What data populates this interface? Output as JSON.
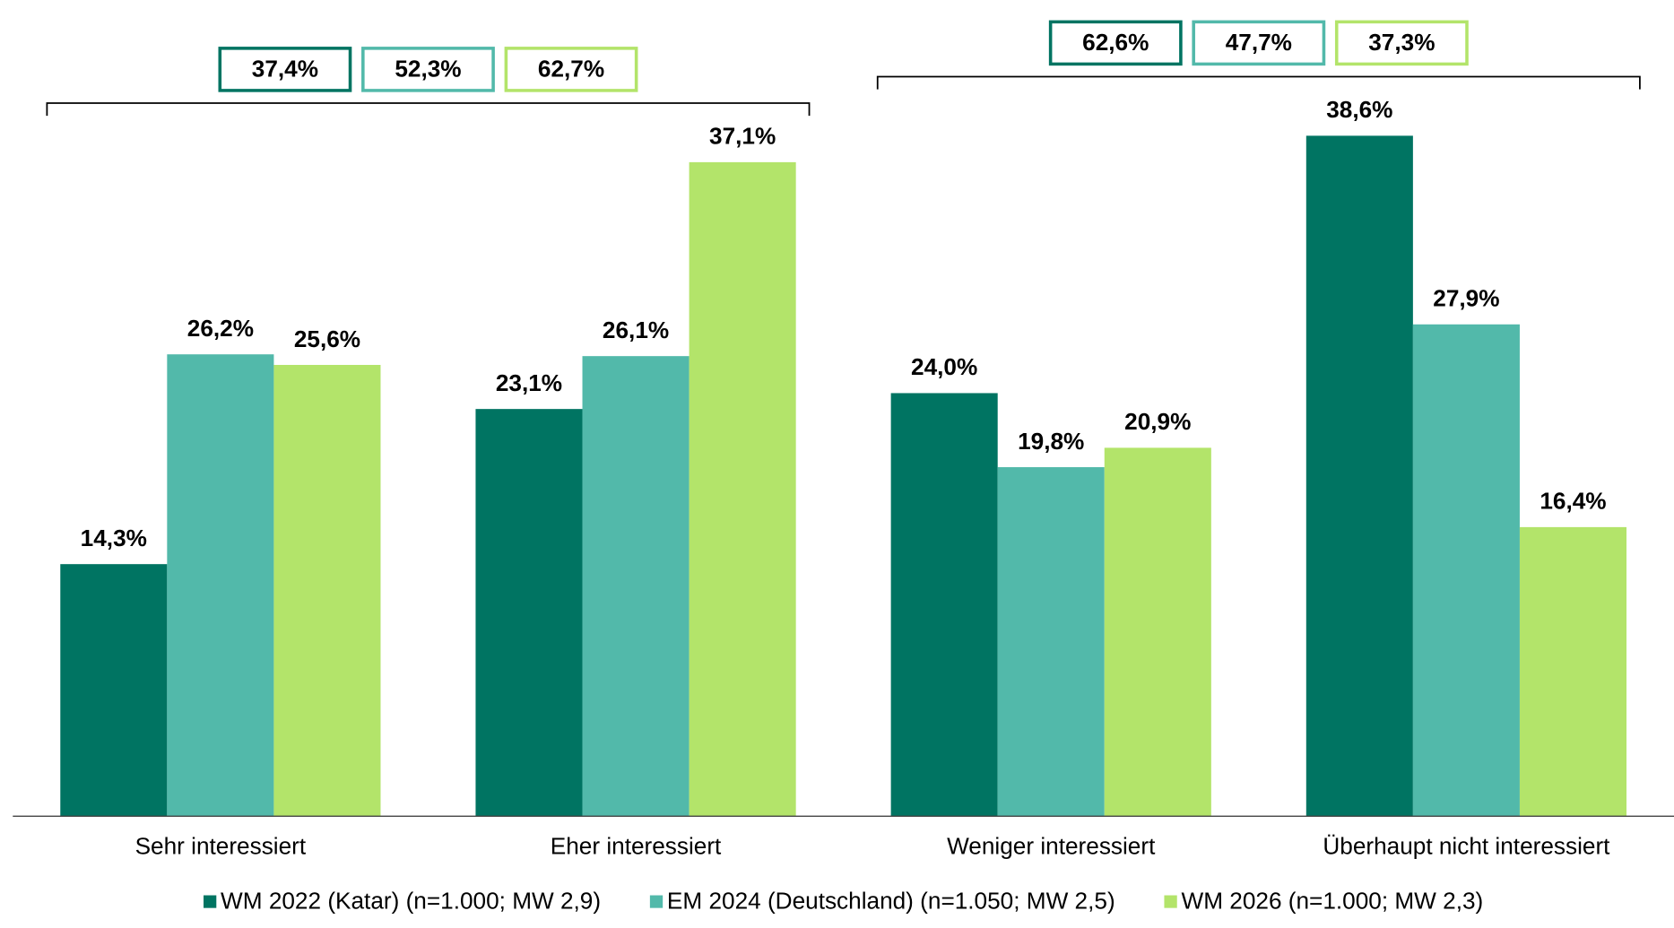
{
  "chart_data": {
    "type": "bar",
    "categories": [
      "Sehr interessiert",
      "Eher interessiert",
      "Weniger interessiert",
      "Überhaupt nicht interessiert"
    ],
    "series": [
      {
        "name": "WM 2022 (Katar) (n=1.000; MW 2,9)",
        "color": "#007462",
        "values": [
          14.3,
          23.1,
          24.0,
          38.6
        ],
        "value_labels": [
          "14,3%",
          "23,1%",
          "24,0%",
          "38,6%"
        ]
      },
      {
        "name": "EM 2024 (Deutschland) (n=1.050; MW 2,5)",
        "color": "#52b9aa",
        "values": [
          26.2,
          26.1,
          19.8,
          27.9
        ],
        "value_labels": [
          "26,2%",
          "26,1%",
          "19,8%",
          "27,9%"
        ]
      },
      {
        "name": "WM 2026 (n=1.000; MW 2,3)",
        "color": "#b3e46a",
        "values": [
          25.6,
          37.1,
          20.9,
          16.4
        ],
        "value_labels": [
          "25,6%",
          "37,1%",
          "20,9%",
          "16,4%"
        ]
      }
    ],
    "brackets": [
      {
        "values": [
          37.4,
          52.3,
          62.7
        ],
        "value_labels": [
          "37,4%",
          "52,3%",
          "62,7%"
        ]
      },
      {
        "values": [
          62.6,
          47.7,
          37.3
        ],
        "value_labels": [
          "62,6%",
          "47,7%",
          "37,3%"
        ]
      }
    ],
    "ylim": [
      0,
      46.3
    ],
    "legend": "bottom"
  }
}
